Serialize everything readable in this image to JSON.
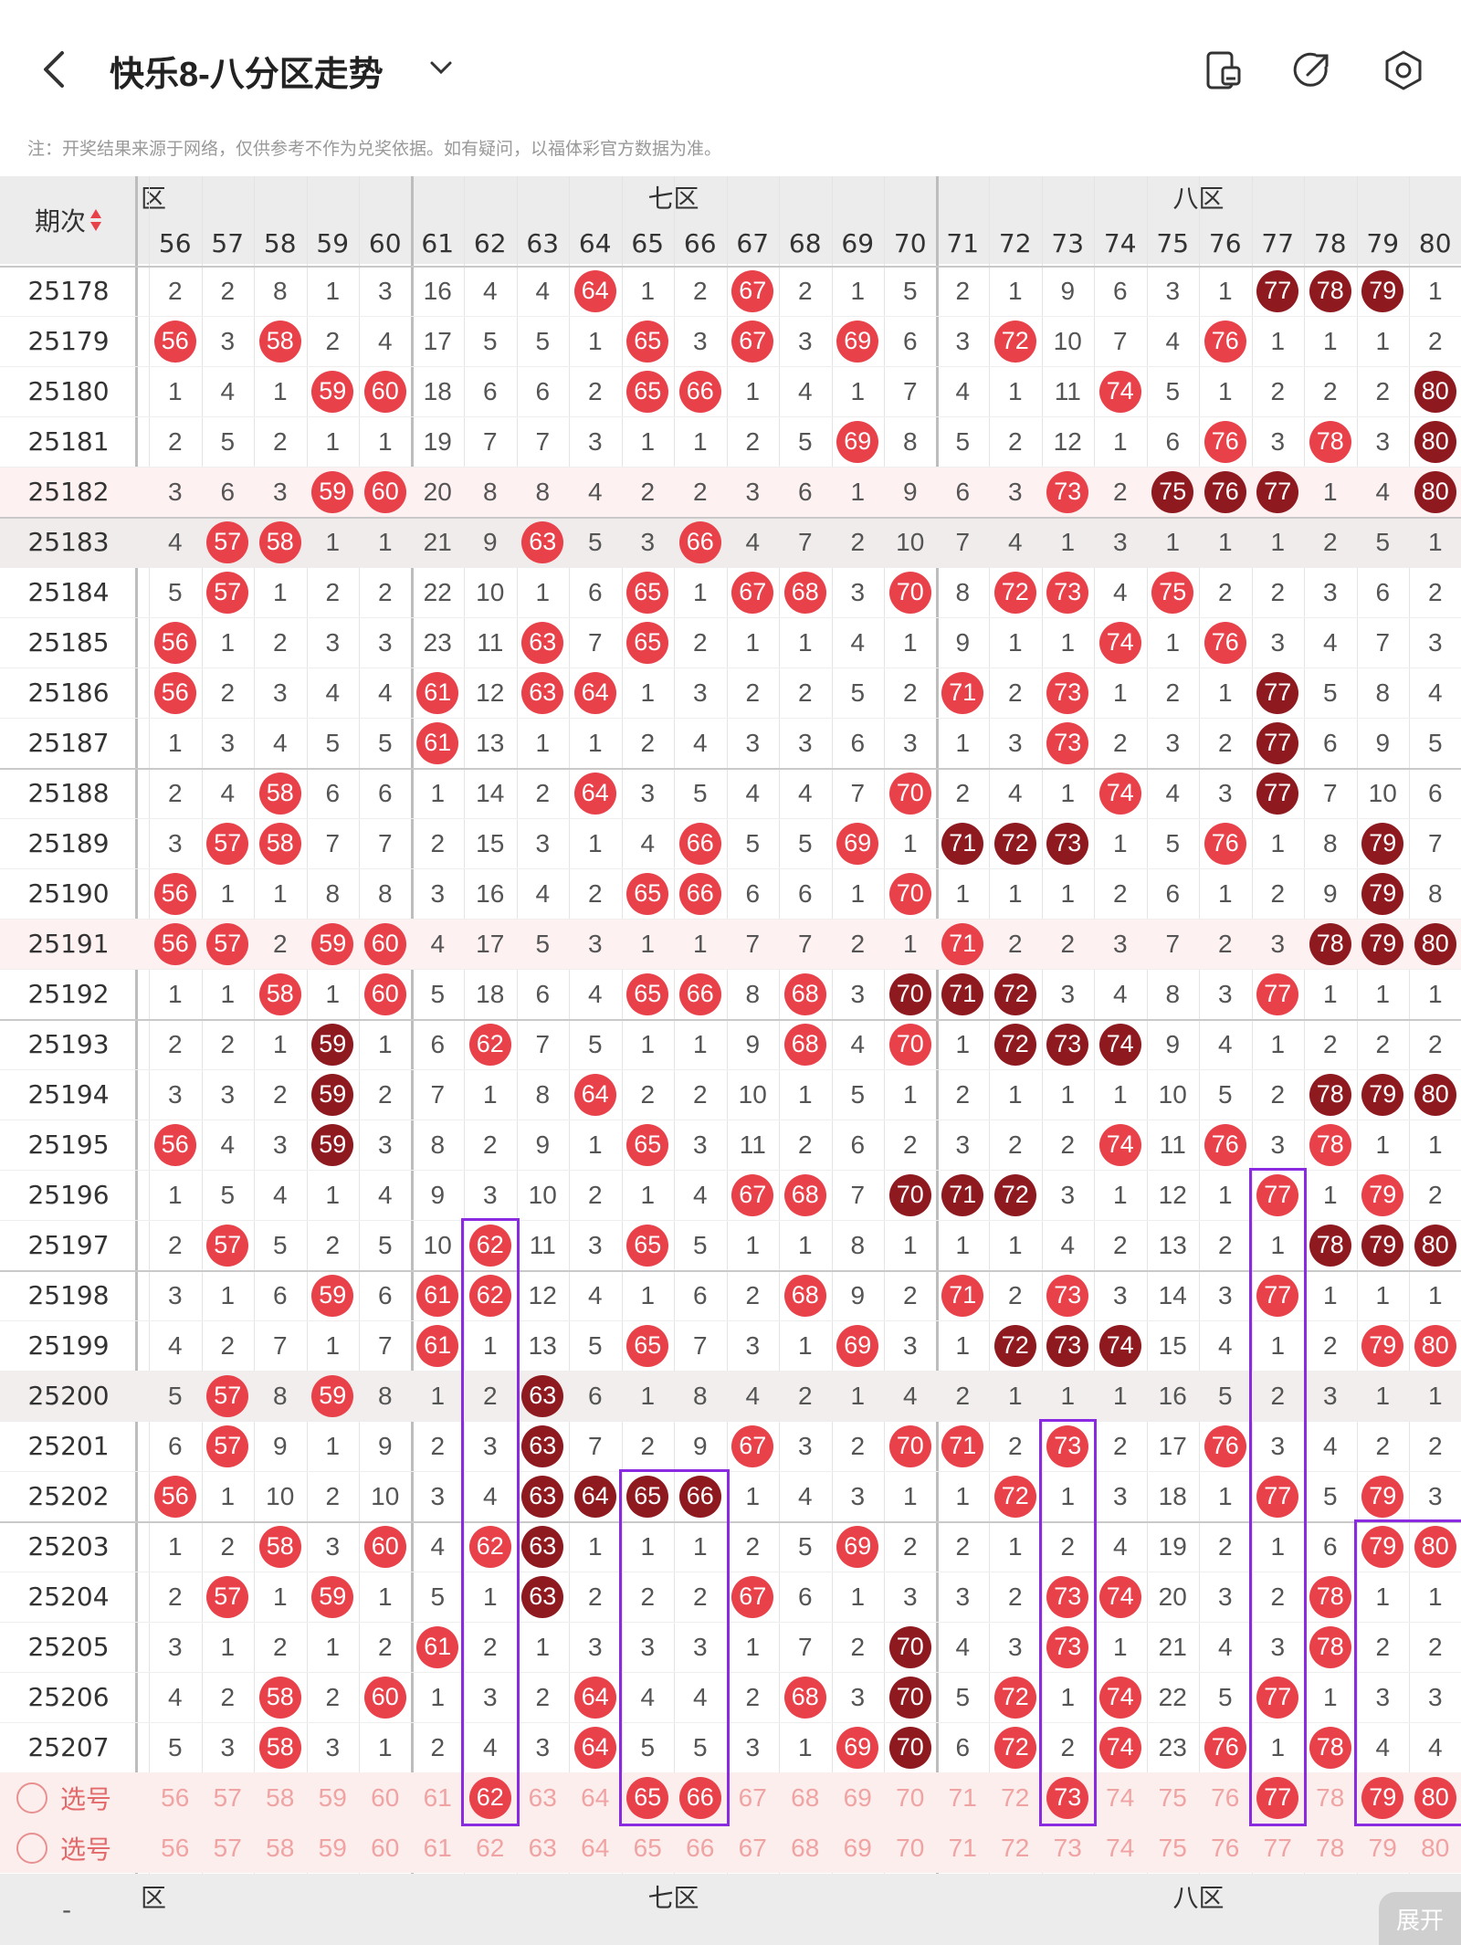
{
  "header": {
    "title": "快乐8-八分区走势",
    "notice": "注：开奖结果来源于网络，仅供参考不作为兑奖依据。如有疑问，以福体彩官方数据为准。",
    "back_icon": "chevron-left-icon",
    "dropdown_icon": "chevron-down-icon",
    "actions": [
      "phone-icon",
      "share-icon",
      "settings-icon"
    ]
  },
  "table": {
    "period_label": "期次",
    "zones": [
      {
        "label": "六区",
        "partial_label": "区"
      },
      {
        "label": "七区"
      },
      {
        "label": "八区"
      }
    ],
    "columns": [
      "56",
      "57",
      "58",
      "59",
      "60",
      "61",
      "62",
      "63",
      "64",
      "65",
      "66",
      "67",
      "68",
      "69",
      "70",
      "71",
      "72",
      "73",
      "74",
      "75",
      "76",
      "77",
      "78",
      "79",
      "80"
    ],
    "rows": [
      {
        "period": "25178",
        "values": [
          "2",
          "2",
          "8",
          "1",
          "3",
          "16",
          "4",
          "4",
          "64",
          "1",
          "2",
          "67",
          "2",
          "1",
          "5",
          "2",
          "1",
          "9",
          "6",
          "3",
          "1",
          "77",
          "78",
          "79",
          "1"
        ],
        "dark": [
          "77",
          "78",
          "79"
        ]
      },
      {
        "period": "25179",
        "values": [
          "56",
          "3",
          "58",
          "2",
          "4",
          "17",
          "5",
          "5",
          "1",
          "65",
          "3",
          "67",
          "3",
          "69",
          "6",
          "3",
          "72",
          "10",
          "7",
          "4",
          "76",
          "1",
          "1",
          "1",
          "2"
        ],
        "dark": []
      },
      {
        "period": "25180",
        "values": [
          "1",
          "4",
          "1",
          "59",
          "60",
          "18",
          "6",
          "6",
          "2",
          "65",
          "66",
          "1",
          "4",
          "1",
          "7",
          "4",
          "1",
          "11",
          "74",
          "5",
          "1",
          "2",
          "2",
          "2",
          "80"
        ],
        "dark": [
          "80"
        ]
      },
      {
        "period": "25181",
        "values": [
          "2",
          "5",
          "2",
          "1",
          "1",
          "19",
          "7",
          "7",
          "3",
          "1",
          "1",
          "2",
          "5",
          "69",
          "8",
          "5",
          "2",
          "12",
          "1",
          "6",
          "76",
          "3",
          "78",
          "3",
          "80"
        ],
        "dark": [
          "80"
        ]
      },
      {
        "period": "25182",
        "values": [
          "3",
          "6",
          "3",
          "59",
          "60",
          "20",
          "8",
          "8",
          "4",
          "2",
          "2",
          "3",
          "6",
          "1",
          "9",
          "6",
          "3",
          "73",
          "2",
          "75",
          "76",
          "77",
          "1",
          "4",
          "80"
        ],
        "dark": [
          "75",
          "76",
          "77",
          "80"
        ]
      },
      {
        "period": "25183",
        "values": [
          "4",
          "57",
          "58",
          "1",
          "1",
          "21",
          "9",
          "63",
          "5",
          "3",
          "66",
          "4",
          "7",
          "2",
          "10",
          "7",
          "4",
          "1",
          "3",
          "1",
          "1",
          "1",
          "2",
          "5",
          "1"
        ],
        "dark": []
      },
      {
        "period": "25184",
        "values": [
          "5",
          "57",
          "1",
          "2",
          "2",
          "22",
          "10",
          "1",
          "6",
          "65",
          "1",
          "67",
          "68",
          "3",
          "70",
          "8",
          "72",
          "73",
          "4",
          "75",
          "2",
          "2",
          "3",
          "6",
          "2"
        ],
        "dark": []
      },
      {
        "period": "25185",
        "values": [
          "56",
          "1",
          "2",
          "3",
          "3",
          "23",
          "11",
          "63",
          "7",
          "65",
          "2",
          "1",
          "1",
          "4",
          "1",
          "9",
          "1",
          "1",
          "74",
          "1",
          "76",
          "3",
          "4",
          "7",
          "3"
        ],
        "dark": []
      },
      {
        "period": "25186",
        "values": [
          "56",
          "2",
          "3",
          "4",
          "4",
          "61",
          "12",
          "63",
          "64",
          "1",
          "3",
          "2",
          "2",
          "5",
          "2",
          "71",
          "2",
          "73",
          "1",
          "2",
          "1",
          "77",
          "5",
          "8",
          "4"
        ],
        "dark": [
          "77"
        ]
      },
      {
        "period": "25187",
        "values": [
          "1",
          "3",
          "4",
          "5",
          "5",
          "61",
          "13",
          "1",
          "1",
          "2",
          "4",
          "3",
          "3",
          "6",
          "3",
          "1",
          "3",
          "73",
          "2",
          "3",
          "2",
          "77",
          "6",
          "9",
          "5"
        ],
        "dark": [
          "77"
        ]
      },
      {
        "period": "25188",
        "values": [
          "2",
          "4",
          "58",
          "6",
          "6",
          "1",
          "14",
          "2",
          "64",
          "3",
          "5",
          "4",
          "4",
          "7",
          "70",
          "2",
          "4",
          "1",
          "74",
          "4",
          "3",
          "77",
          "7",
          "10",
          "6"
        ],
        "dark": [
          "77"
        ]
      },
      {
        "period": "25189",
        "values": [
          "3",
          "57",
          "58",
          "7",
          "7",
          "2",
          "15",
          "3",
          "1",
          "4",
          "66",
          "5",
          "5",
          "69",
          "1",
          "71",
          "72",
          "73",
          "1",
          "5",
          "76",
          "1",
          "8",
          "79",
          "7"
        ],
        "dark": [
          "71",
          "72",
          "73",
          "79"
        ]
      },
      {
        "period": "25190",
        "values": [
          "56",
          "1",
          "1",
          "8",
          "8",
          "3",
          "16",
          "4",
          "2",
          "65",
          "66",
          "6",
          "6",
          "1",
          "70",
          "1",
          "1",
          "1",
          "2",
          "6",
          "1",
          "2",
          "9",
          "79",
          "8"
        ],
        "dark": [
          "79"
        ]
      },
      {
        "period": "25191",
        "values": [
          "56",
          "57",
          "2",
          "59",
          "60",
          "4",
          "17",
          "5",
          "3",
          "1",
          "1",
          "7",
          "7",
          "2",
          "1",
          "71",
          "2",
          "2",
          "3",
          "7",
          "2",
          "3",
          "78",
          "79",
          "80"
        ],
        "dark": [
          "78",
          "79",
          "80"
        ]
      },
      {
        "period": "25192",
        "values": [
          "1",
          "1",
          "58",
          "1",
          "60",
          "5",
          "18",
          "6",
          "4",
          "65",
          "66",
          "8",
          "68",
          "3",
          "70",
          "71",
          "72",
          "3",
          "4",
          "8",
          "3",
          "77",
          "1",
          "1",
          "1"
        ],
        "dark": [
          "70",
          "71",
          "72"
        ]
      },
      {
        "period": "25193",
        "values": [
          "2",
          "2",
          "1",
          "59",
          "1",
          "6",
          "62",
          "7",
          "5",
          "1",
          "1",
          "9",
          "68",
          "4",
          "70",
          "1",
          "72",
          "73",
          "74",
          "9",
          "4",
          "1",
          "2",
          "2",
          "2"
        ],
        "dark": [
          "59",
          "72",
          "73",
          "74"
        ]
      },
      {
        "period": "25194",
        "values": [
          "3",
          "3",
          "2",
          "59",
          "2",
          "7",
          "1",
          "8",
          "64",
          "2",
          "2",
          "10",
          "1",
          "5",
          "1",
          "2",
          "1",
          "1",
          "1",
          "10",
          "5",
          "2",
          "78",
          "79",
          "80"
        ],
        "dark": [
          "59",
          "78",
          "79",
          "80"
        ]
      },
      {
        "period": "25195",
        "values": [
          "56",
          "4",
          "3",
          "59",
          "3",
          "8",
          "2",
          "9",
          "1",
          "65",
          "3",
          "11",
          "2",
          "6",
          "2",
          "3",
          "2",
          "2",
          "74",
          "11",
          "76",
          "3",
          "78",
          "1",
          "1"
        ],
        "dark": [
          "59"
        ]
      },
      {
        "period": "25196",
        "values": [
          "1",
          "5",
          "4",
          "1",
          "4",
          "9",
          "3",
          "10",
          "2",
          "1",
          "4",
          "67",
          "68",
          "7",
          "70",
          "71",
          "72",
          "3",
          "1",
          "12",
          "1",
          "77",
          "1",
          "79",
          "2"
        ],
        "dark": [
          "70",
          "71",
          "72"
        ]
      },
      {
        "period": "25197",
        "values": [
          "2",
          "57",
          "5",
          "2",
          "5",
          "10",
          "62",
          "11",
          "3",
          "65",
          "5",
          "1",
          "1",
          "8",
          "1",
          "1",
          "1",
          "4",
          "2",
          "13",
          "2",
          "1",
          "78",
          "79",
          "80"
        ],
        "dark": [
          "78",
          "79",
          "80"
        ]
      },
      {
        "period": "25198",
        "values": [
          "3",
          "1",
          "6",
          "59",
          "6",
          "61",
          "62",
          "12",
          "4",
          "1",
          "6",
          "2",
          "68",
          "9",
          "2",
          "71",
          "2",
          "73",
          "3",
          "14",
          "3",
          "77",
          "1",
          "1",
          "1"
        ],
        "dark": []
      },
      {
        "period": "25199",
        "values": [
          "4",
          "2",
          "7",
          "1",
          "7",
          "61",
          "1",
          "13",
          "5",
          "65",
          "7",
          "3",
          "1",
          "69",
          "3",
          "1",
          "72",
          "73",
          "74",
          "15",
          "4",
          "1",
          "2",
          "79",
          "80"
        ],
        "dark": [
          "72",
          "73",
          "74"
        ]
      },
      {
        "period": "25200",
        "values": [
          "5",
          "57",
          "8",
          "59",
          "8",
          "1",
          "2",
          "63",
          "6",
          "1",
          "8",
          "4",
          "2",
          "1",
          "4",
          "2",
          "1",
          "1",
          "1",
          "16",
          "5",
          "2",
          "3",
          "1",
          "1"
        ],
        "dark": [
          "63"
        ]
      },
      {
        "period": "25201",
        "values": [
          "6",
          "57",
          "9",
          "1",
          "9",
          "2",
          "3",
          "63",
          "7",
          "2",
          "9",
          "67",
          "3",
          "2",
          "70",
          "71",
          "2",
          "73",
          "2",
          "17",
          "76",
          "3",
          "4",
          "2",
          "2"
        ],
        "dark": [
          "63"
        ]
      },
      {
        "period": "25202",
        "values": [
          "56",
          "1",
          "10",
          "2",
          "10",
          "3",
          "4",
          "63",
          "64",
          "65",
          "66",
          "1",
          "4",
          "3",
          "1",
          "1",
          "72",
          "1",
          "3",
          "18",
          "1",
          "77",
          "5",
          "79",
          "3"
        ],
        "dark": [
          "63",
          "64",
          "65",
          "66"
        ]
      },
      {
        "period": "25203",
        "values": [
          "1",
          "2",
          "58",
          "3",
          "60",
          "4",
          "62",
          "63",
          "1",
          "1",
          "1",
          "2",
          "5",
          "69",
          "2",
          "2",
          "1",
          "2",
          "4",
          "19",
          "2",
          "1",
          "6",
          "79",
          "80"
        ],
        "dark": [
          "63"
        ]
      },
      {
        "period": "25204",
        "values": [
          "2",
          "57",
          "1",
          "59",
          "1",
          "5",
          "1",
          "63",
          "2",
          "2",
          "2",
          "67",
          "6",
          "1",
          "3",
          "3",
          "2",
          "73",
          "74",
          "20",
          "3",
          "2",
          "78",
          "1",
          "1"
        ],
        "dark": [
          "63"
        ]
      },
      {
        "period": "25205",
        "values": [
          "3",
          "1",
          "2",
          "1",
          "2",
          "61",
          "2",
          "1",
          "3",
          "3",
          "3",
          "1",
          "7",
          "2",
          "70",
          "4",
          "3",
          "73",
          "1",
          "21",
          "4",
          "3",
          "78",
          "2",
          "2"
        ],
        "dark": [
          "70"
        ]
      },
      {
        "period": "25206",
        "values": [
          "4",
          "2",
          "58",
          "2",
          "60",
          "1",
          "3",
          "2",
          "64",
          "4",
          "4",
          "2",
          "68",
          "3",
          "70",
          "5",
          "72",
          "1",
          "74",
          "22",
          "5",
          "77",
          "1",
          "3",
          "3"
        ],
        "dark": [
          "70"
        ]
      },
      {
        "period": "25207",
        "values": [
          "5",
          "3",
          "58",
          "3",
          "1",
          "2",
          "4",
          "3",
          "64",
          "5",
          "5",
          "3",
          "1",
          "69",
          "70",
          "6",
          "72",
          "2",
          "74",
          "23",
          "76",
          "1",
          "78",
          "4",
          "4"
        ],
        "dark": [
          "70"
        ]
      }
    ],
    "select_rows": [
      {
        "label": "选号",
        "selected": [
          "62",
          "65",
          "66",
          "73",
          "77",
          "79",
          "80"
        ]
      },
      {
        "label": "选号",
        "selected": []
      }
    ],
    "expand_label": "展开",
    "footer_dash": "-"
  },
  "colors": {
    "red_ball": "#e8414a",
    "dark_ball": "#8e1a20",
    "highlight_box": "#8a2be2",
    "select_row_bg": "#fdeeee"
  }
}
